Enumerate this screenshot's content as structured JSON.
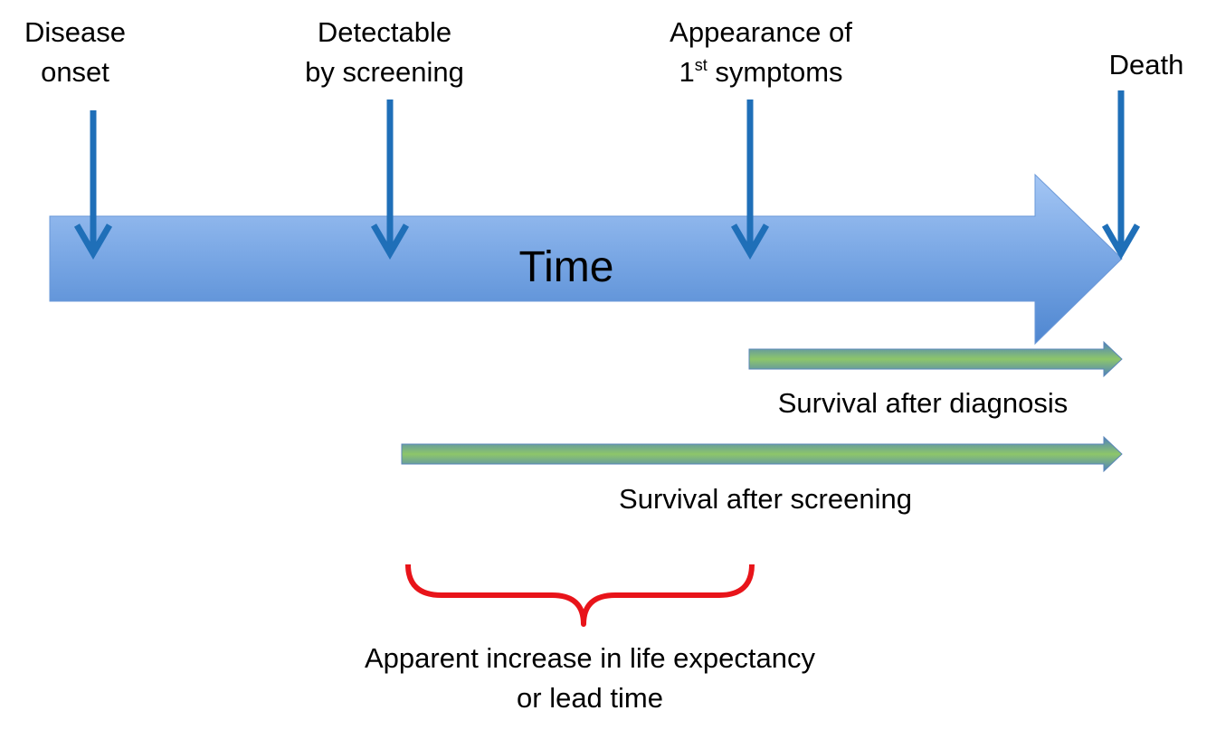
{
  "events": {
    "disease_onset": {
      "line1": "Disease",
      "line2": "onset"
    },
    "detectable": {
      "line1": "Detectable",
      "line2": "by screening"
    },
    "symptoms": {
      "line1": "Appearance of",
      "line2_num": "1",
      "line2_sup": "st",
      "line2_rest": " symptoms"
    },
    "death": {
      "label": "Death"
    }
  },
  "time_arrow": {
    "label": "Time"
  },
  "survival_after_diagnosis": {
    "label": "Survival after diagnosis"
  },
  "survival_after_screening": {
    "label": "Survival after screening"
  },
  "lead_time": {
    "line1": "Apparent increase in life expectancy",
    "line2": "or lead time"
  },
  "colors": {
    "event_arrow": "#1f6fb8",
    "time_arrow_top": "#9cc0f2",
    "time_arrow_bottom": "#4f86cf",
    "survival_bar_top": "#8cc56a",
    "survival_bar_bottom": "#4f81bd",
    "brace": "#e8141a"
  }
}
